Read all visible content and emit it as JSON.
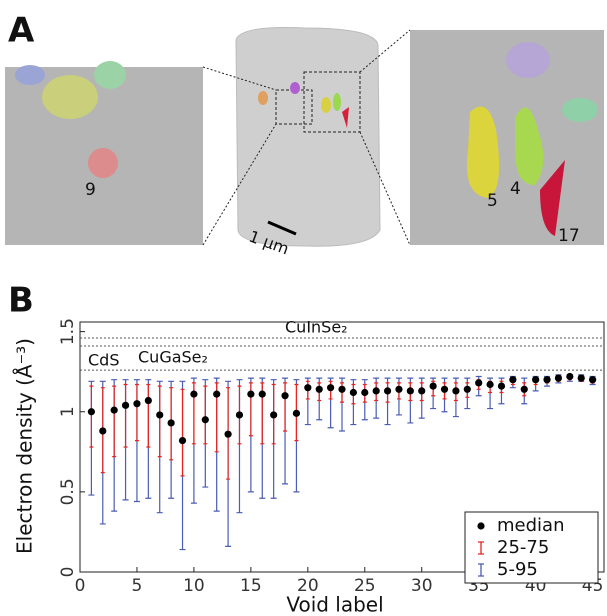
{
  "panel_a": {
    "label": "A",
    "left_inset_label": "9",
    "right_inset_labels": [
      "5",
      "4",
      "17"
    ],
    "scale_bar": "1 µm"
  },
  "chart_data": {
    "type": "errorbar",
    "panel_label": "B",
    "x_label": "Void label",
    "y_label": "Electron density (Å⁻³)",
    "x": [
      1,
      2,
      3,
      4,
      5,
      6,
      7,
      8,
      9,
      10,
      11,
      12,
      13,
      14,
      15,
      16,
      17,
      18,
      19,
      20,
      21,
      22,
      23,
      24,
      25,
      26,
      27,
      28,
      29,
      30,
      31,
      32,
      33,
      34,
      35,
      36,
      37,
      38,
      39,
      40,
      41,
      42,
      43,
      44,
      45
    ],
    "xlim": [
      0,
      46
    ],
    "xticks": [
      0,
      5,
      10,
      15,
      20,
      25,
      30,
      35,
      40,
      45
    ],
    "ylim": [
      0,
      1.56
    ],
    "yticks": [
      0,
      0.5,
      1,
      1.5
    ],
    "reference_lines": [
      {
        "label": "CuInSe₂",
        "value": 1.46
      },
      {
        "label": "CuGaSe₂",
        "value": 1.41
      },
      {
        "label": "CdS",
        "value": 1.26
      }
    ],
    "series": [
      {
        "name": "median",
        "color": "#000000",
        "values": [
          1.0,
          0.88,
          1.01,
          1.04,
          1.05,
          1.07,
          0.98,
          0.93,
          0.82,
          1.11,
          0.95,
          1.11,
          0.86,
          0.98,
          1.11,
          1.11,
          0.98,
          1.1,
          0.99,
          1.15,
          1.14,
          1.15,
          1.14,
          1.12,
          1.12,
          1.13,
          1.13,
          1.14,
          1.13,
          1.13,
          1.16,
          1.14,
          1.13,
          1.14,
          1.18,
          1.17,
          1.16,
          1.2,
          1.14,
          1.2,
          1.2,
          1.21,
          1.22,
          1.21,
          1.2
        ]
      },
      {
        "name": "25-75",
        "color": "#e8241f",
        "low": [
          0.78,
          0.62,
          0.72,
          0.78,
          0.82,
          0.78,
          0.72,
          0.7,
          0.6,
          0.8,
          0.8,
          0.75,
          0.58,
          0.8,
          0.85,
          0.8,
          0.8,
          0.88,
          0.82,
          1.08,
          1.07,
          1.08,
          1.06,
          1.05,
          1.06,
          1.07,
          1.06,
          1.08,
          1.07,
          1.07,
          1.1,
          1.08,
          1.07,
          1.09,
          1.14,
          1.12,
          1.12,
          1.17,
          1.1,
          1.17,
          1.18,
          1.19,
          1.2,
          1.19,
          1.18
        ],
        "high": [
          1.16,
          1.15,
          1.16,
          1.17,
          1.17,
          1.17,
          1.16,
          1.15,
          1.14,
          1.18,
          1.16,
          1.18,
          1.15,
          1.16,
          1.18,
          1.18,
          1.17,
          1.18,
          1.17,
          1.19,
          1.18,
          1.19,
          1.18,
          1.17,
          1.17,
          1.18,
          1.18,
          1.18,
          1.18,
          1.18,
          1.19,
          1.18,
          1.18,
          1.18,
          1.2,
          1.19,
          1.19,
          1.21,
          1.18,
          1.21,
          1.21,
          1.22,
          1.23,
          1.22,
          1.21
        ]
      },
      {
        "name": "5-95",
        "color": "#4a5cb3",
        "low": [
          0.48,
          0.3,
          0.38,
          0.45,
          0.44,
          0.46,
          0.37,
          0.46,
          0.14,
          0.43,
          0.53,
          0.38,
          0.16,
          0.37,
          0.5,
          0.46,
          0.46,
          0.55,
          0.5,
          0.92,
          0.95,
          0.9,
          0.88,
          0.92,
          0.95,
          0.96,
          0.92,
          0.98,
          0.93,
          0.96,
          1.02,
          1.0,
          0.97,
          1.02,
          1.1,
          1.02,
          1.05,
          1.15,
          1.05,
          1.13,
          1.16,
          1.18,
          1.19,
          1.19,
          1.17
        ],
        "high": [
          1.19,
          1.19,
          1.2,
          1.2,
          1.2,
          1.2,
          1.19,
          1.19,
          1.19,
          1.21,
          1.2,
          1.21,
          1.19,
          1.2,
          1.21,
          1.21,
          1.2,
          1.21,
          1.2,
          1.21,
          1.21,
          1.21,
          1.21,
          1.2,
          1.2,
          1.21,
          1.21,
          1.21,
          1.21,
          1.21,
          1.21,
          1.21,
          1.21,
          1.21,
          1.22,
          1.21,
          1.21,
          1.22,
          1.21,
          1.22,
          1.22,
          1.23,
          1.23,
          1.23,
          1.22
        ]
      }
    ],
    "legend_position": "lower right"
  }
}
